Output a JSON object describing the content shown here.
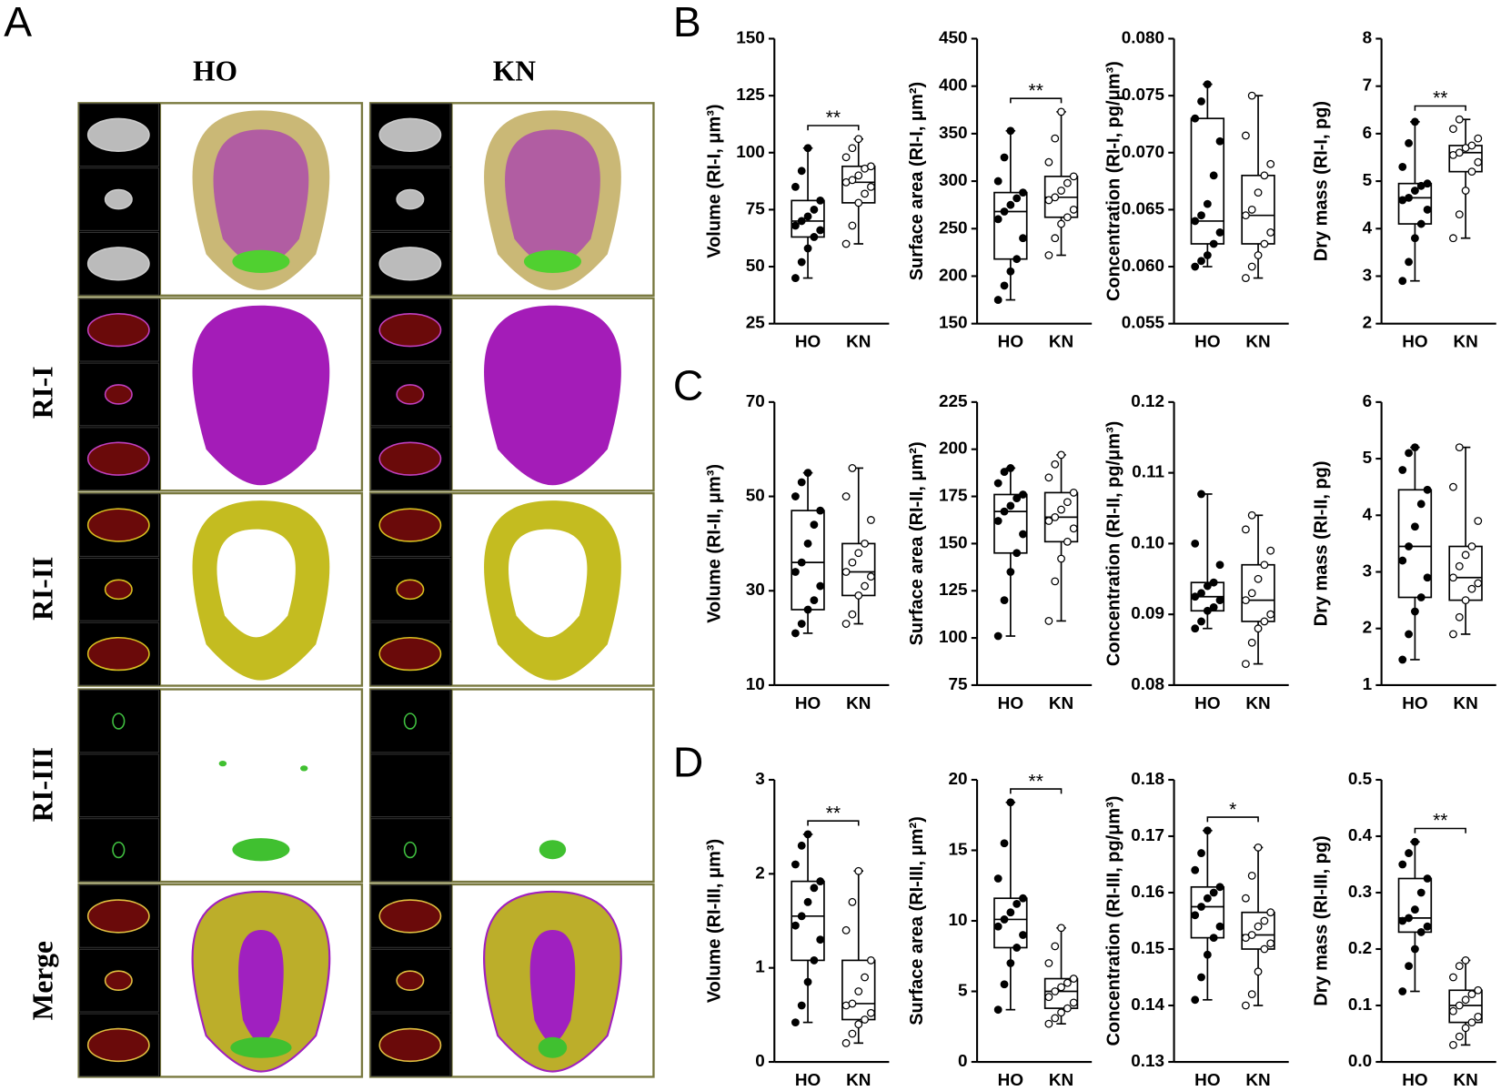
{
  "figure": {
    "panel_labels": [
      "A",
      "B",
      "C",
      "D"
    ],
    "image_columns": [
      "HO",
      "KN"
    ],
    "image_rows": [
      "RI-I",
      "RI-II",
      "RI-III",
      "Merge"
    ]
  },
  "chart_data": [
    {
      "type": "box",
      "ylabel": "Volume (RI-I, μm³)",
      "categories": [
        "HO",
        "KN"
      ],
      "ylim": [
        25,
        150
      ],
      "yticks": [
        25,
        50,
        75,
        100,
        125,
        150
      ],
      "annotation": "**",
      "point_colors": [
        "#000000",
        "#ffffff"
      ],
      "boxes": [
        {
          "min": 45,
          "q1": 63,
          "median": 70,
          "q3": 79,
          "max": 102,
          "points": [
            45,
            52,
            58,
            63,
            66,
            68,
            70,
            72,
            75,
            79,
            85,
            92,
            102
          ]
        },
        {
          "min": 60,
          "q1": 78,
          "median": 87,
          "q3": 94,
          "max": 106,
          "points": [
            60,
            68,
            78,
            82,
            85,
            87,
            88,
            90,
            93,
            94,
            98,
            102,
            106
          ]
        }
      ]
    },
    {
      "type": "box",
      "ylabel": "Surface area (RI-I, μm²)",
      "categories": [
        "HO",
        "KN"
      ],
      "ylim": [
        150,
        450
      ],
      "yticks": [
        150,
        200,
        250,
        300,
        350,
        400,
        450
      ],
      "annotation": "**",
      "point_colors": [
        "#000000",
        "#ffffff"
      ],
      "boxes": [
        {
          "min": 175,
          "q1": 218,
          "median": 268,
          "q3": 288,
          "max": 353,
          "points": [
            175,
            190,
            205,
            218,
            240,
            260,
            268,
            275,
            282,
            288,
            300,
            325,
            353
          ]
        },
        {
          "min": 222,
          "q1": 262,
          "median": 283,
          "q3": 305,
          "max": 373,
          "points": [
            222,
            240,
            255,
            262,
            270,
            280,
            283,
            290,
            298,
            305,
            320,
            345,
            373
          ]
        }
      ]
    },
    {
      "type": "box",
      "ylabel": "Concentration (RI-I, pg/μm³)",
      "categories": [
        "HO",
        "KN"
      ],
      "ylim": [
        0.055,
        0.08
      ],
      "yticks": [
        0.055,
        {
          "value": 0.06,
          "label": "0.060"
        },
        0.065,
        {
          "value": 0.07,
          "label": "0.070"
        },
        0.075,
        {
          "value": 0.08,
          "label": "0.080"
        }
      ],
      "point_colors": [
        "#000000",
        "#ffffff"
      ],
      "boxes": [
        {
          "min": 0.06,
          "q1": 0.062,
          "median": 0.064,
          "q3": 0.073,
          "max": 0.076,
          "points": [
            0.06,
            0.0605,
            0.061,
            0.062,
            0.063,
            0.064,
            0.0645,
            0.0655,
            0.068,
            0.071,
            0.073,
            0.0745,
            0.076
          ]
        },
        {
          "min": 0.059,
          "q1": 0.062,
          "median": 0.0645,
          "q3": 0.068,
          "max": 0.075,
          "points": [
            0.059,
            0.06,
            0.061,
            0.062,
            0.063,
            0.0645,
            0.065,
            0.0665,
            0.068,
            0.069,
            0.0715,
            0.075
          ]
        }
      ]
    },
    {
      "type": "box",
      "ylabel": "Dry mass (RI-I, pg)",
      "categories": [
        "HO",
        "KN"
      ],
      "ylim": [
        2,
        8
      ],
      "yticks": [
        2,
        3,
        4,
        5,
        6,
        7,
        8
      ],
      "annotation": "**",
      "point_colors": [
        "#000000",
        "#ffffff"
      ],
      "boxes": [
        {
          "min": 2.9,
          "q1": 4.1,
          "median": 4.65,
          "q3": 4.95,
          "max": 6.25,
          "points": [
            2.9,
            3.3,
            3.8,
            4.1,
            4.4,
            4.6,
            4.65,
            4.8,
            4.9,
            4.95,
            5.3,
            5.8,
            6.25
          ]
        },
        {
          "min": 3.8,
          "q1": 5.2,
          "median": 5.6,
          "q3": 5.75,
          "max": 6.3,
          "points": [
            3.8,
            4.3,
            4.8,
            5.2,
            5.4,
            5.55,
            5.6,
            5.7,
            5.75,
            5.9,
            6.1,
            6.3
          ]
        }
      ]
    },
    {
      "type": "box",
      "ylabel": "Volume (RI-II, μm³)",
      "categories": [
        "HO",
        "KN"
      ],
      "ylim": [
        10,
        70
      ],
      "yticks": [
        10,
        30,
        50,
        70
      ],
      "point_colors": [
        "#000000",
        "#ffffff"
      ],
      "boxes": [
        {
          "min": 21,
          "q1": 26,
          "median": 36,
          "q3": 47,
          "max": 55,
          "points": [
            21,
            23,
            26,
            28,
            31,
            34,
            36,
            40,
            44,
            47,
            50,
            53,
            55
          ]
        },
        {
          "min": 23,
          "q1": 29,
          "median": 34,
          "q3": 40,
          "max": 56,
          "points": [
            23,
            25,
            29,
            31,
            33,
            34,
            36,
            38,
            40,
            45,
            50,
            56
          ]
        }
      ]
    },
    {
      "type": "box",
      "ylabel": "Surface area (RI-II, μm²)",
      "categories": [
        "HO",
        "KN"
      ],
      "ylim": [
        75,
        225
      ],
      "yticks": [
        75,
        100,
        125,
        150,
        175,
        200,
        225
      ],
      "point_colors": [
        "#000000",
        "#ffffff"
      ],
      "boxes": [
        {
          "min": 101,
          "q1": 145,
          "median": 167,
          "q3": 176,
          "max": 190,
          "points": [
            101,
            120,
            135,
            145,
            155,
            162,
            167,
            170,
            174,
            176,
            182,
            188,
            190
          ]
        },
        {
          "min": 109,
          "q1": 151,
          "median": 164,
          "q3": 177,
          "max": 197,
          "points": [
            109,
            130,
            142,
            151,
            158,
            162,
            164,
            168,
            172,
            177,
            185,
            192,
            197
          ]
        }
      ]
    },
    {
      "type": "box",
      "ylabel": "Concentration (RI-II, pg/μm³)",
      "categories": [
        "HO",
        "KN"
      ],
      "ylim": [
        0.08,
        0.12
      ],
      "yticks": [
        0.08,
        0.09,
        {
          "value": 0.1,
          "label": "0.10"
        },
        0.11,
        0.12
      ],
      "point_colors": [
        "#000000",
        "#ffffff"
      ],
      "boxes": [
        {
          "min": 0.088,
          "q1": 0.0905,
          "median": 0.0925,
          "q3": 0.0945,
          "max": 0.107,
          "points": [
            0.088,
            0.089,
            0.0905,
            0.091,
            0.092,
            0.0925,
            0.093,
            0.094,
            0.0945,
            0.097,
            0.1,
            0.107
          ]
        },
        {
          "min": 0.083,
          "q1": 0.089,
          "median": 0.092,
          "q3": 0.097,
          "max": 0.104,
          "points": [
            0.083,
            0.086,
            0.088,
            0.089,
            0.09,
            0.092,
            0.093,
            0.095,
            0.097,
            0.099,
            0.102,
            0.104
          ]
        }
      ]
    },
    {
      "type": "box",
      "ylabel": "Dry mass (RI-II, pg)",
      "categories": [
        "HO",
        "KN"
      ],
      "ylim": [
        1,
        6
      ],
      "yticks": [
        1,
        2,
        3,
        4,
        5,
        6
      ],
      "point_colors": [
        "#000000",
        "#ffffff"
      ],
      "boxes": [
        {
          "min": 1.45,
          "q1": 2.55,
          "median": 3.45,
          "q3": 4.45,
          "max": 5.2,
          "points": [
            1.45,
            1.9,
            2.3,
            2.55,
            2.9,
            3.2,
            3.45,
            3.8,
            4.2,
            4.45,
            4.8,
            5.1,
            5.2
          ]
        },
        {
          "min": 1.9,
          "q1": 2.5,
          "median": 2.9,
          "q3": 3.45,
          "max": 5.2,
          "points": [
            1.9,
            2.2,
            2.5,
            2.7,
            2.8,
            2.9,
            3.1,
            3.3,
            3.45,
            3.9,
            4.5,
            5.2
          ]
        }
      ]
    },
    {
      "type": "box",
      "ylabel": "Volume (RI-III, μm³)",
      "categories": [
        "HO",
        "KN"
      ],
      "ylim": [
        0,
        3
      ],
      "yticks": [
        0,
        1,
        2,
        3
      ],
      "annotation": "**",
      "point_colors": [
        "#000000",
        "#ffffff"
      ],
      "boxes": [
        {
          "min": 0.42,
          "q1": 1.08,
          "median": 1.55,
          "q3": 1.92,
          "max": 2.42,
          "points": [
            0.42,
            0.6,
            0.85,
            1.08,
            1.3,
            1.45,
            1.55,
            1.7,
            1.85,
            1.92,
            2.1,
            2.3,
            2.42
          ]
        },
        {
          "min": 0.2,
          "q1": 0.45,
          "median": 0.62,
          "q3": 1.08,
          "max": 2.03,
          "points": [
            0.2,
            0.3,
            0.4,
            0.45,
            0.52,
            0.6,
            0.62,
            0.75,
            0.9,
            1.08,
            1.4,
            1.7,
            2.03
          ]
        }
      ]
    },
    {
      "type": "box",
      "ylabel": "Surface area (RI-III, μm²)",
      "categories": [
        "HO",
        "KN"
      ],
      "ylim": [
        0,
        20
      ],
      "yticks": [
        0,
        5,
        10,
        15,
        20
      ],
      "annotation": "**",
      "point_colors": [
        "#000000",
        "#ffffff"
      ],
      "boxes": [
        {
          "min": 3.7,
          "q1": 8.1,
          "median": 10.1,
          "q3": 11.6,
          "max": 18.4,
          "points": [
            3.7,
            5.5,
            7,
            8.1,
            9,
            9.6,
            10.1,
            10.6,
            11.2,
            11.6,
            13,
            15.5,
            18.4
          ]
        },
        {
          "min": 2.7,
          "q1": 3.8,
          "median": 5,
          "q3": 5.9,
          "max": 9.5,
          "points": [
            2.7,
            3.1,
            3.5,
            3.8,
            4.2,
            4.6,
            5,
            5.3,
            5.6,
            5.9,
            7,
            8.2,
            9.5
          ]
        }
      ]
    },
    {
      "type": "box",
      "ylabel": "Concentration (RI-III, pg/μm³)",
      "categories": [
        "HO",
        "KN"
      ],
      "ylim": [
        0.13,
        0.18
      ],
      "yticks": [
        0.13,
        0.14,
        0.15,
        0.16,
        0.17,
        0.18
      ],
      "annotation": "*",
      "point_colors": [
        "#000000",
        "#ffffff"
      ],
      "boxes": [
        {
          "min": 0.141,
          "q1": 0.152,
          "median": 0.1575,
          "q3": 0.161,
          "max": 0.171,
          "points": [
            0.141,
            0.145,
            0.149,
            0.152,
            0.154,
            0.156,
            0.1575,
            0.159,
            0.16,
            0.161,
            0.164,
            0.167,
            0.171
          ]
        },
        {
          "min": 0.14,
          "q1": 0.15,
          "median": 0.1525,
          "q3": 0.1565,
          "max": 0.168,
          "points": [
            0.14,
            0.142,
            0.146,
            0.15,
            0.151,
            0.152,
            0.1525,
            0.154,
            0.155,
            0.1565,
            0.159,
            0.163,
            0.168
          ]
        }
      ]
    },
    {
      "type": "box",
      "ylabel": "Dry mass (RI-III, pg)",
      "categories": [
        "HO",
        "KN"
      ],
      "ylim": [
        0,
        0.5
      ],
      "yticks": [
        {
          "value": 0,
          "label": "0.0"
        },
        0.1,
        0.2,
        0.3,
        0.4,
        0.5
      ],
      "annotation": "**",
      "point_colors": [
        "#000000",
        "#ffffff"
      ],
      "boxes": [
        {
          "min": 0.125,
          "q1": 0.23,
          "median": 0.255,
          "q3": 0.325,
          "max": 0.39,
          "points": [
            0.125,
            0.17,
            0.2,
            0.23,
            0.24,
            0.25,
            0.255,
            0.27,
            0.3,
            0.325,
            0.35,
            0.37,
            0.39
          ]
        },
        {
          "min": 0.03,
          "q1": 0.07,
          "median": 0.1,
          "q3": 0.127,
          "max": 0.18,
          "points": [
            0.03,
            0.045,
            0.06,
            0.07,
            0.08,
            0.09,
            0.1,
            0.11,
            0.12,
            0.127,
            0.15,
            0.17,
            0.18
          ]
        }
      ]
    }
  ]
}
